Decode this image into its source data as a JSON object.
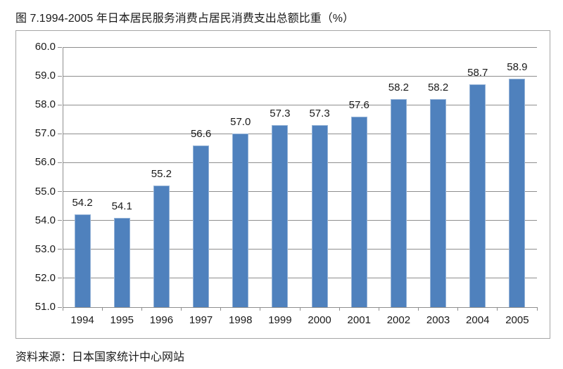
{
  "title": "图 7.1994-2005 年日本居民服务消费占居民消费支出总额比重（%）",
  "source": "资料来源：日本国家统计中心网站",
  "colors": {
    "bar_fill": "#4F81BD",
    "bar_edge": "#95B3D7",
    "grid": "#8E8E8E",
    "axis": "#8E8E8E",
    "frame_border": "#A6A6A6",
    "text": "#1A1A1A",
    "background": "#FFFFFF"
  },
  "chart_data": {
    "type": "bar",
    "title": "图 7.1994-2005 年日本居民服务消费占居民消费支出总额比重（%）",
    "categories": [
      "1994",
      "1995",
      "1996",
      "1997",
      "1998",
      "1999",
      "2000",
      "2001",
      "2002",
      "2003",
      "2004",
      "2005"
    ],
    "values": [
      54.2,
      54.1,
      55.2,
      56.6,
      57.0,
      57.3,
      57.3,
      57.6,
      58.2,
      58.2,
      58.7,
      58.9
    ],
    "value_labels": [
      "54.2",
      "54.1",
      "55.2",
      "56.6",
      "57.0",
      "57.3",
      "57.3",
      "57.6",
      "58.2",
      "58.2",
      "58.7",
      "58.9"
    ],
    "xlabel": "",
    "ylabel": "",
    "ylim": [
      51.0,
      60.0
    ],
    "ytick_step": 1.0,
    "ytick_labels": [
      "51.0",
      "52.0",
      "53.0",
      "54.0",
      "55.0",
      "56.0",
      "57.0",
      "58.0",
      "59.0",
      "60.0"
    ],
    "grid": true,
    "legend_position": "none",
    "source_note": "资料来源：日本国家统计中心网站"
  }
}
